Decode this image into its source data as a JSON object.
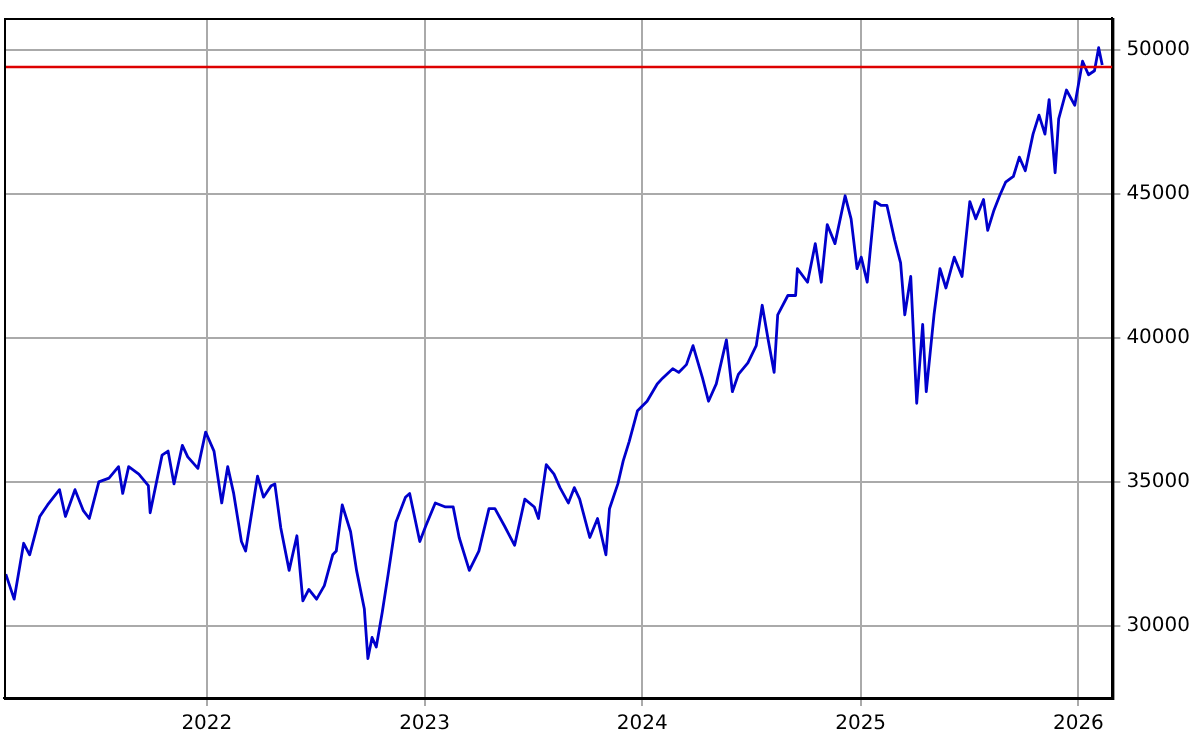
{
  "chart_data": {
    "type": "line",
    "x": [
      "2021-01-29",
      "2021-02-12",
      "2021-02-28",
      "2021-03-10",
      "2021-03-27",
      "2021-04-09",
      "2021-04-29",
      "2021-05-09",
      "2021-05-25",
      "2021-06-08",
      "2021-06-18",
      "2021-07-04",
      "2021-07-21",
      "2021-08-06",
      "2021-08-13",
      "2021-08-23",
      "2021-09-09",
      "2021-09-25",
      "2021-09-28",
      "2021-10-18",
      "2021-10-28",
      "2021-11-07",
      "2021-11-21",
      "2021-11-30",
      "2021-12-17",
      "2021-12-30",
      "2022-01-13",
      "2022-01-26",
      "2022-02-05",
      "2022-02-15",
      "2022-02-28",
      "2022-03-07",
      "2022-03-27",
      "2022-04-06",
      "2022-04-19",
      "2022-04-25",
      "2022-05-05",
      "2022-05-19",
      "2022-06-01",
      "2022-06-11",
      "2022-06-21",
      "2022-07-04",
      "2022-07-17",
      "2022-07-31",
      "2022-08-06",
      "2022-08-16",
      "2022-08-30",
      "2022-09-09",
      "2022-09-22",
      "2022-09-28",
      "2022-10-05",
      "2022-10-12",
      "2022-10-22",
      "2022-11-01",
      "2022-11-14",
      "2022-11-30",
      "2022-12-07",
      "2022-12-24",
      "2023-01-03",
      "2023-01-19",
      "2023-02-05",
      "2023-02-18",
      "2023-02-28",
      "2023-03-17",
      "2023-04-02",
      "2023-04-19",
      "2023-04-29",
      "2023-05-15",
      "2023-06-01",
      "2023-06-18",
      "2023-07-04",
      "2023-07-11",
      "2023-07-24",
      "2023-08-06",
      "2023-08-16",
      "2023-08-30",
      "2023-09-09",
      "2023-09-18",
      "2023-10-05",
      "2023-10-18",
      "2023-11-01",
      "2023-11-07",
      "2023-11-21",
      "2023-11-30",
      "2023-12-10",
      "2023-12-24",
      "2024-01-09",
      "2024-01-26",
      "2024-02-04",
      "2024-02-21",
      "2024-03-02",
      "2024-03-15",
      "2024-03-26",
      "2024-04-11",
      "2024-04-21",
      "2024-05-04",
      "2024-05-21",
      "2024-05-31",
      "2024-06-10",
      "2024-06-26",
      "2024-07-10",
      "2024-07-20",
      "2024-07-30",
      "2024-08-09",
      "2024-08-15",
      "2024-09-01",
      "2024-09-14",
      "2024-09-17",
      "2024-10-04",
      "2024-10-17",
      "2024-10-27",
      "2024-11-06",
      "2024-11-19",
      "2024-12-06",
      "2024-12-16",
      "2024-12-26",
      "2025-01-02",
      "2025-01-12",
      "2025-01-25",
      "2025-02-04",
      "2025-02-14",
      "2025-02-27",
      "2025-03-09",
      "2025-03-16",
      "2025-03-26",
      "2025-04-05",
      "2025-04-15",
      "2025-04-21",
      "2025-05-04",
      "2025-05-14",
      "2025-05-24",
      "2025-06-07",
      "2025-06-20",
      "2025-07-03",
      "2025-07-13",
      "2025-07-26",
      "2025-08-02",
      "2025-08-12",
      "2025-08-22",
      "2025-09-01",
      "2025-09-14",
      "2025-09-24",
      "2025-10-04",
      "2025-10-17",
      "2025-10-27",
      "2025-11-06",
      "2025-11-13",
      "2025-11-23",
      "2025-11-29",
      "2025-12-12",
      "2025-12-26",
      "2026-01-08",
      "2026-01-18",
      "2026-01-28",
      "2026-02-04",
      "2026-02-10"
    ],
    "series": [
      {
        "color": "#0000cc",
        "values": [
          31800,
          30930,
          32870,
          32470,
          33800,
          34200,
          34730,
          33800,
          34730,
          34000,
          33730,
          35000,
          35130,
          35530,
          34600,
          35530,
          35270,
          34870,
          33930,
          35930,
          36070,
          34930,
          36270,
          35870,
          35470,
          36730,
          36070,
          34270,
          35530,
          34600,
          32930,
          32600,
          35200,
          34470,
          34870,
          34930,
          33400,
          31930,
          33130,
          30870,
          31270,
          30930,
          31400,
          32470,
          32600,
          34200,
          33270,
          31930,
          30600,
          28870,
          29600,
          29270,
          30470,
          31800,
          33600,
          34470,
          34600,
          32930,
          33470,
          34270,
          34130,
          34130,
          33070,
          31930,
          32600,
          34070,
          34070,
          33470,
          32800,
          34400,
          34130,
          33730,
          35600,
          35270,
          34800,
          34270,
          34800,
          34400,
          33070,
          33730,
          32470,
          34070,
          34930,
          35730,
          36400,
          37470,
          37800,
          38400,
          38600,
          38930,
          38800,
          39070,
          39730,
          38600,
          37800,
          38400,
          39930,
          38130,
          38730,
          39130,
          39730,
          41130,
          39930,
          38800,
          40800,
          41470,
          41470,
          42400,
          41930,
          43270,
          41930,
          43930,
          43270,
          44930,
          44130,
          42400,
          42800,
          41930,
          44730,
          44600,
          44600,
          43400,
          42600,
          40800,
          42130,
          37730,
          40470,
          38130,
          40800,
          42400,
          41730,
          42800,
          42130,
          44730,
          44130,
          44800,
          43730,
          44400,
          44930,
          45400,
          45600,
          46270,
          45800,
          47070,
          47730,
          47070,
          48270,
          45730,
          47600,
          48600,
          48070,
          49600,
          49130,
          49270,
          50070,
          49470
        ]
      }
    ],
    "xlim": [
      "2021-01-26",
      "2026-02-27"
    ],
    "xticks": [
      {
        "value": "2022-01-01",
        "label": "2022"
      },
      {
        "value": "2023-01-01",
        "label": "2023"
      },
      {
        "value": "2024-01-01",
        "label": "2024"
      },
      {
        "value": "2025-01-01",
        "label": "2025"
      },
      {
        "value": "2026-01-01",
        "label": "2026"
      }
    ],
    "ylim": [
      27500,
      51100
    ],
    "yticks": [
      30000,
      35000,
      40000,
      45000,
      50000
    ],
    "ref_lines": [
      {
        "axis": "y",
        "value": 49400,
        "color": "#dd0000"
      }
    ],
    "grid": true,
    "legend": false,
    "marker": "none",
    "line_style": "solid"
  }
}
